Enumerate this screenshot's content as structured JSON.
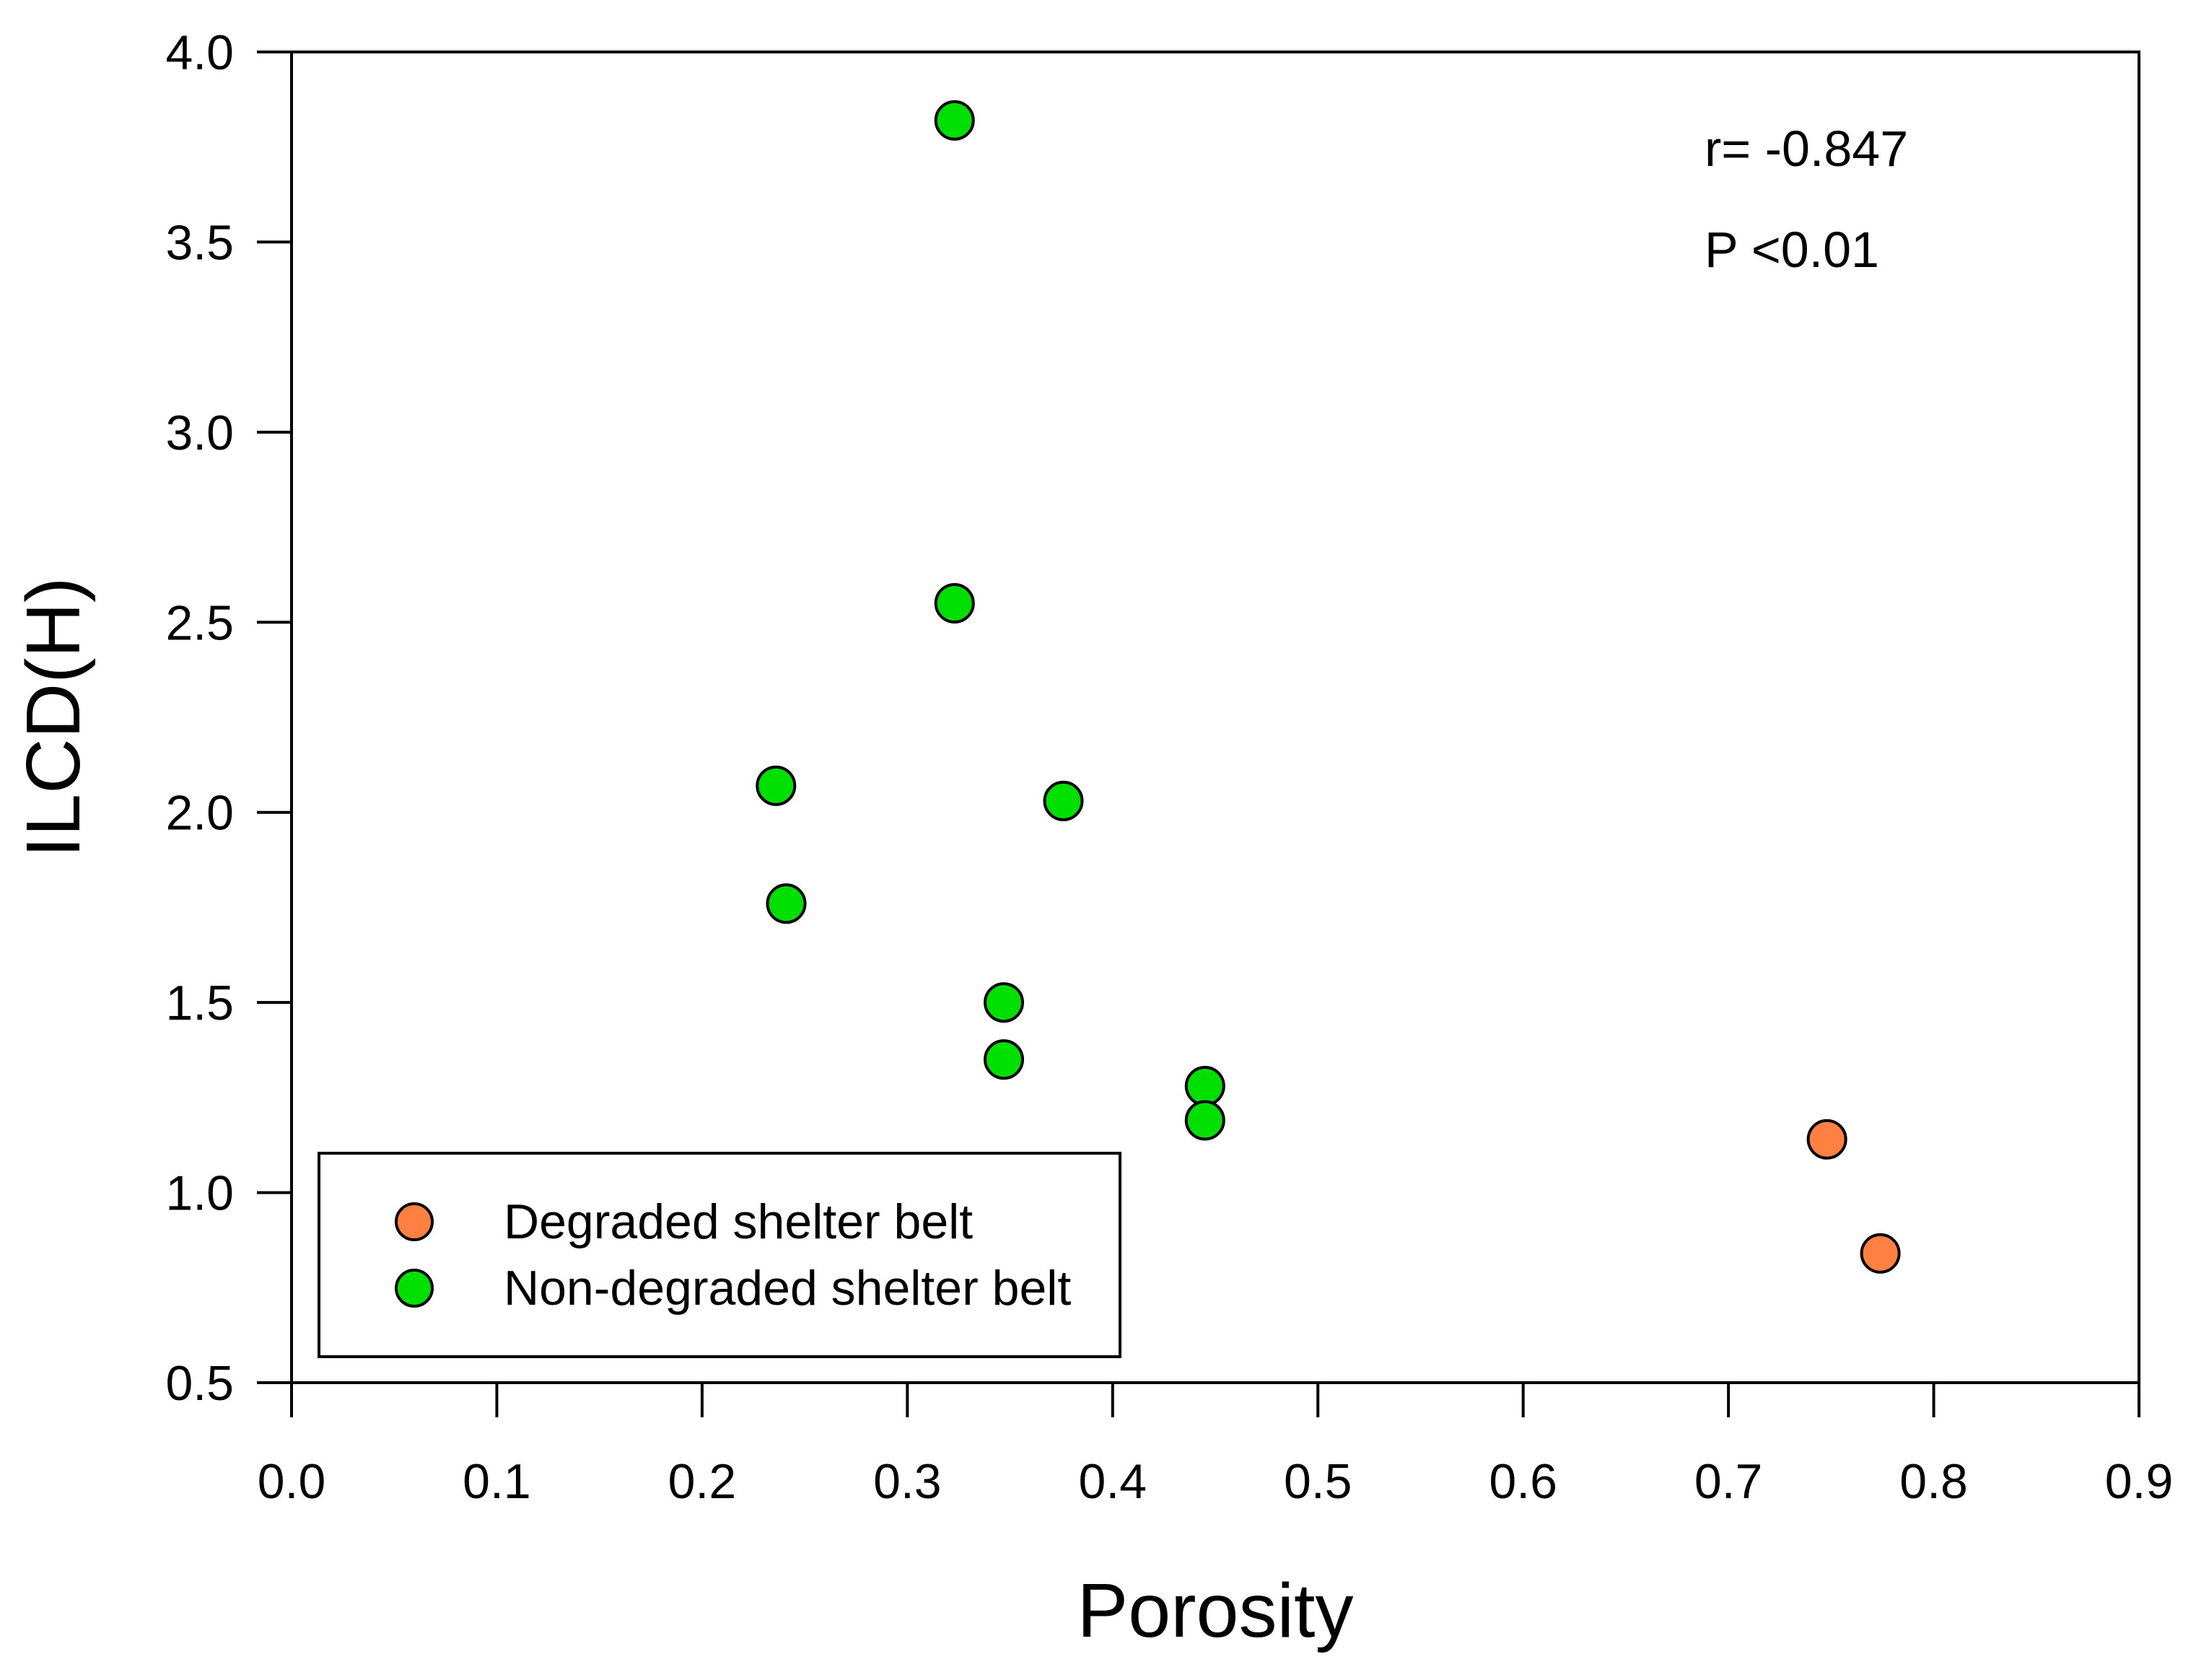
{
  "chart_data": {
    "type": "scatter",
    "title": "",
    "xlabel": "Porosity",
    "ylabel": "ILCD(H)",
    "xlim": [
      0.0,
      0.9
    ],
    "ylim": [
      0.5,
      4.0
    ],
    "xticks": [
      "0.0",
      "0.1",
      "0.2",
      "0.3",
      "0.4",
      "0.5",
      "0.6",
      "0.7",
      "0.8",
      "0.9"
    ],
    "yticks": [
      "0.5",
      "1.0",
      "1.5",
      "2.0",
      "2.5",
      "3.0",
      "3.5",
      "4.0"
    ],
    "grid": false,
    "legend_position": "bottom-left",
    "series": [
      {
        "name": "Degraded shelter belt",
        "color": "#ff8040",
        "points": [
          {
            "x": 0.748,
            "y": 1.14
          },
          {
            "x": 0.774,
            "y": 0.84
          }
        ]
      },
      {
        "name": "Non-degraded shelter belt",
        "color": "#00e000",
        "points": [
          {
            "x": 0.323,
            "y": 3.82
          },
          {
            "x": 0.323,
            "y": 2.55
          },
          {
            "x": 0.236,
            "y": 2.07
          },
          {
            "x": 0.376,
            "y": 2.03
          },
          {
            "x": 0.241,
            "y": 1.76
          },
          {
            "x": 0.347,
            "y": 1.5
          },
          {
            "x": 0.347,
            "y": 1.35
          },
          {
            "x": 0.445,
            "y": 1.28
          },
          {
            "x": 0.445,
            "y": 1.19
          }
        ]
      }
    ],
    "annotations": [
      "r= -0.847",
      "P <0.01"
    ]
  }
}
